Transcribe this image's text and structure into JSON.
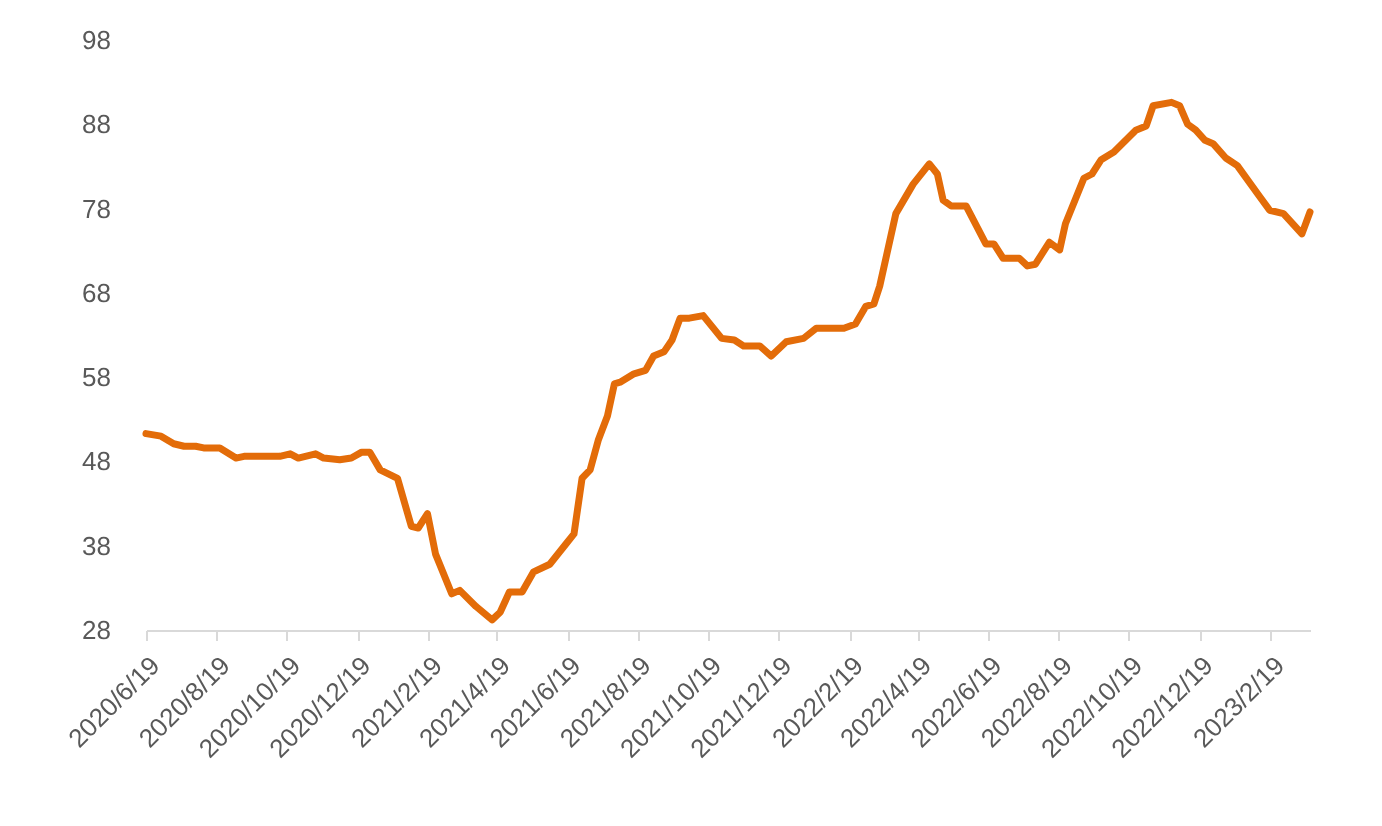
{
  "chart_data": {
    "type": "line",
    "x": [
      "2020-06-19",
      "2020-07-02",
      "2020-07-13",
      "2020-07-22",
      "2020-08-01",
      "2020-08-08",
      "2020-08-22",
      "2020-09-05",
      "2020-09-12",
      "2020-10-13",
      "2020-10-22",
      "2020-10-29",
      "2020-11-13",
      "2020-11-20",
      "2020-12-04",
      "2020-12-14",
      "2020-12-23",
      "2020-12-30",
      "2021-01-08",
      "2021-01-23",
      "2021-02-04",
      "2021-02-10",
      "2021-02-18",
      "2021-02-25",
      "2021-03-11",
      "2021-03-18",
      "2021-04-01",
      "2021-04-15",
      "2021-04-22",
      "2021-04-30",
      "2021-05-11",
      "2021-05-21",
      "2021-06-04",
      "2021-06-18",
      "2021-06-25",
      "2021-07-02",
      "2021-07-09",
      "2021-07-16",
      "2021-07-24",
      "2021-07-30",
      "2021-08-04",
      "2021-08-16",
      "2021-08-26",
      "2021-09-02",
      "2021-09-11",
      "2021-09-18",
      "2021-09-25",
      "2021-10-03",
      "2021-10-15",
      "2021-10-31",
      "2021-11-11",
      "2021-11-19",
      "2021-12-03",
      "2021-12-13",
      "2021-12-26",
      "2022-01-10",
      "2022-01-21",
      "2022-02-14",
      "2022-02-24",
      "2022-03-05",
      "2022-03-12",
      "2022-03-17",
      "2022-03-31",
      "2022-04-15",
      "2022-04-29",
      "2022-05-06",
      "2022-05-11",
      "2022-05-18",
      "2022-05-31",
      "2022-06-17",
      "2022-06-24",
      "2022-07-02",
      "2022-07-16",
      "2022-07-23",
      "2022-07-30",
      "2022-08-11",
      "2022-08-20",
      "2022-08-25",
      "2022-09-10",
      "2022-09-17",
      "2022-09-25",
      "2022-10-06",
      "2022-10-25",
      "2022-11-03",
      "2022-11-09",
      "2022-11-25",
      "2022-12-02",
      "2022-12-09",
      "2022-12-16",
      "2022-12-24",
      "2022-12-31",
      "2023-01-11",
      "2023-01-21",
      "2023-02-09",
      "2023-02-18",
      "2023-03-02",
      "2023-03-18",
      "2023-03-25"
    ],
    "series": [
      {
        "color": "#e36c09",
        "values": [
          51.3,
          51.0,
          50.1,
          49.8,
          49.8,
          49.6,
          49.6,
          48.4,
          48.6,
          48.6,
          48.9,
          48.4,
          48.9,
          48.4,
          48.2,
          48.4,
          49.1,
          49.1,
          47.0,
          46.0,
          40.3,
          40.1,
          41.8,
          37.0,
          32.3,
          32.7,
          30.8,
          29.2,
          30.1,
          32.5,
          32.5,
          34.9,
          35.8,
          38.2,
          39.4,
          46.0,
          47.0,
          50.5,
          53.4,
          57.2,
          57.4,
          58.4,
          58.8,
          60.5,
          61.0,
          62.4,
          65.0,
          65.0,
          65.3,
          62.6,
          62.4,
          61.7,
          61.7,
          60.5,
          62.2,
          62.6,
          63.8,
          63.8,
          64.3,
          66.4,
          66.7,
          68.8,
          77.4,
          80.9,
          83.3,
          82.1,
          79.0,
          78.3,
          78.3,
          73.8,
          73.8,
          72.1,
          72.1,
          71.2,
          71.4,
          74.0,
          73.1,
          76.2,
          81.6,
          82.1,
          83.8,
          84.7,
          87.3,
          87.8,
          90.2,
          90.6,
          90.2,
          88.0,
          87.3,
          86.1,
          85.7,
          84.0,
          83.1,
          79.5,
          77.8,
          77.4,
          75.0,
          77.6
        ]
      }
    ],
    "xlim": [
      "2020-06-19",
      "2023-03-25"
    ],
    "xticks": [
      {
        "value": "2020-06-19",
        "label": "2020/6/19"
      },
      {
        "value": "2020-08-19",
        "label": "2020/8/19"
      },
      {
        "value": "2020-10-19",
        "label": "2020/10/19"
      },
      {
        "value": "2020-12-19",
        "label": "2020/12/19"
      },
      {
        "value": "2021-02-19",
        "label": "2021/2/19"
      },
      {
        "value": "2021-04-19",
        "label": "2021/4/19"
      },
      {
        "value": "2021-06-19",
        "label": "2021/6/19"
      },
      {
        "value": "2021-08-19",
        "label": "2021/8/19"
      },
      {
        "value": "2021-10-19",
        "label": "2021/10/19"
      },
      {
        "value": "2021-12-19",
        "label": "2021/12/19"
      },
      {
        "value": "2022-02-19",
        "label": "2022/2/19"
      },
      {
        "value": "2022-04-19",
        "label": "2022/4/19"
      },
      {
        "value": "2022-06-19",
        "label": "2022/6/19"
      },
      {
        "value": "2022-08-19",
        "label": "2022/8/19"
      },
      {
        "value": "2022-10-19",
        "label": "2022/10/19"
      },
      {
        "value": "2022-12-19",
        "label": "2022/12/19"
      },
      {
        "value": "2023-02-19",
        "label": "2023/2/19"
      }
    ],
    "ylim": [
      28,
      98
    ],
    "yticks": [
      28,
      38,
      48,
      58,
      68,
      78,
      88,
      98
    ],
    "grid": false,
    "marker": "none",
    "line_style": "solid"
  }
}
